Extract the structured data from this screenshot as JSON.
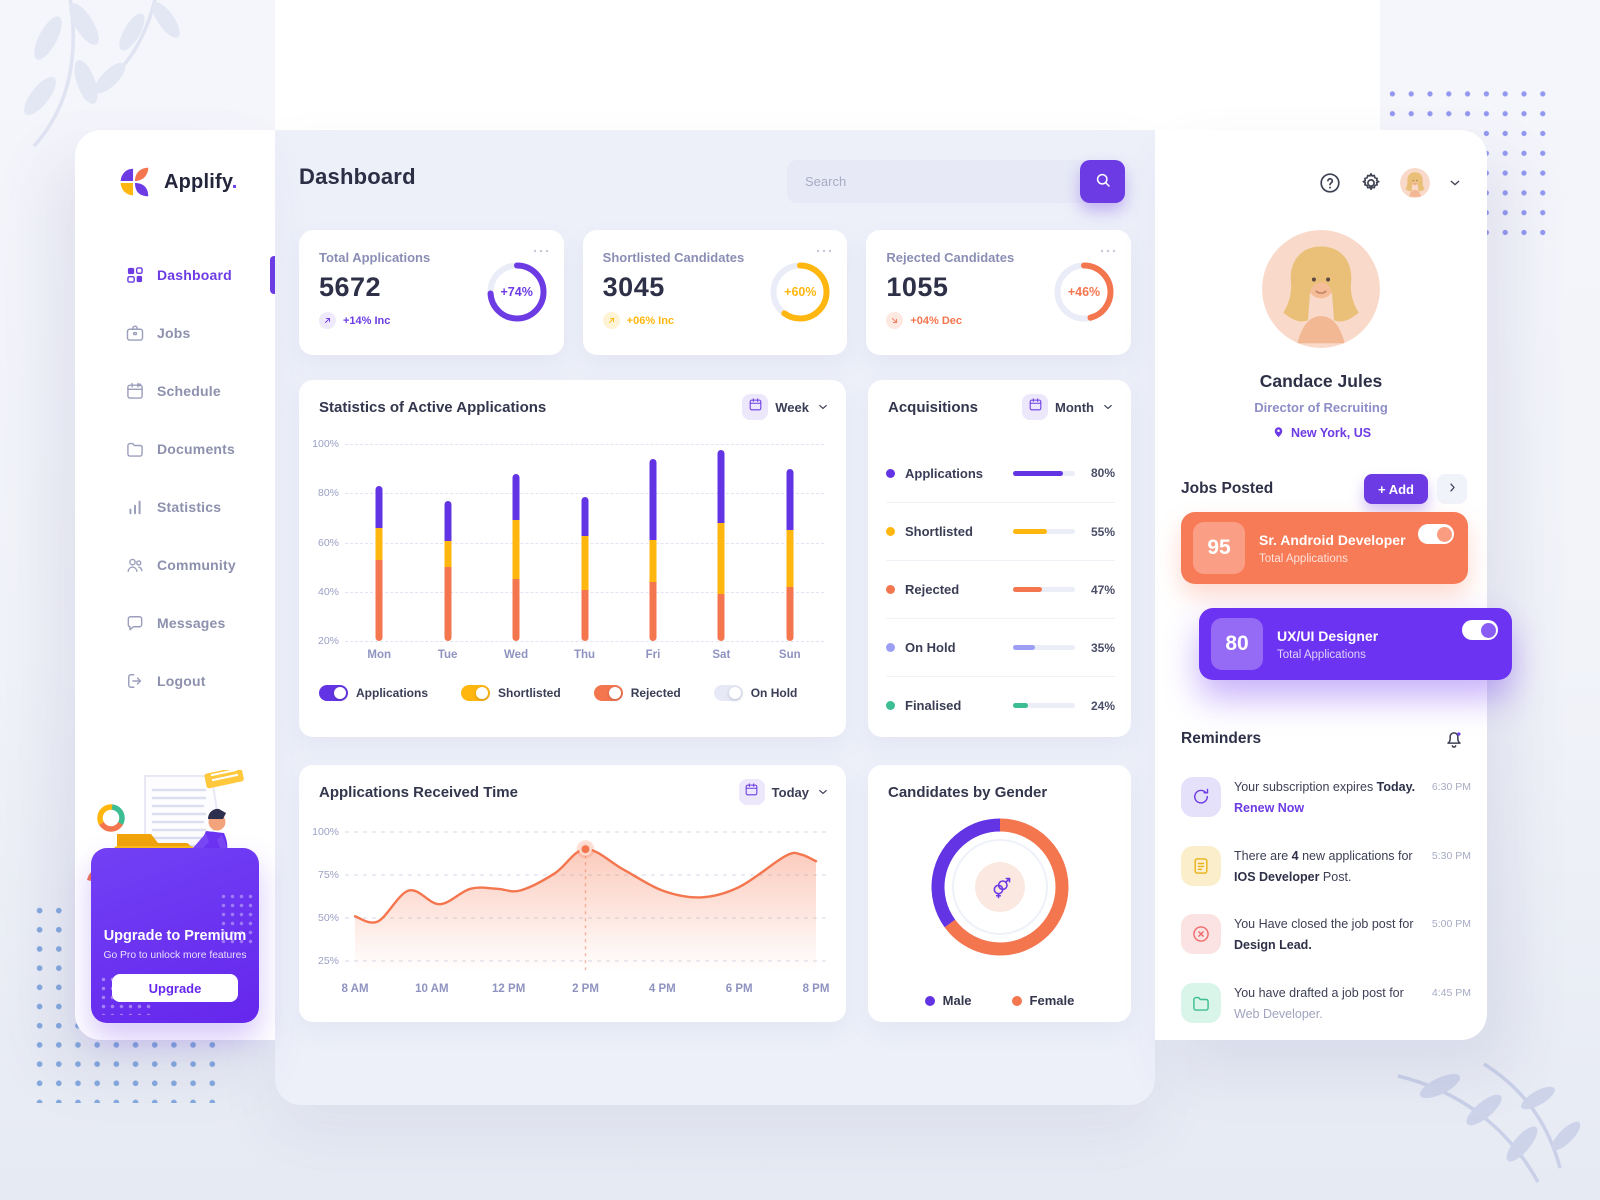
{
  "app": {
    "name": "Applify",
    "logo_dot": ".",
    "page_title": "Dashboard"
  },
  "search": {
    "placeholder": "Search"
  },
  "sidebar": {
    "items": [
      {
        "label": "Dashboard",
        "icon": "grid",
        "active": true
      },
      {
        "label": "Jobs",
        "icon": "briefcase",
        "active": false
      },
      {
        "label": "Schedule",
        "icon": "calendar-dot",
        "active": false
      },
      {
        "label": "Documents",
        "icon": "folder",
        "active": false
      },
      {
        "label": "Statistics",
        "icon": "bars",
        "active": false
      },
      {
        "label": "Community",
        "icon": "users",
        "active": false
      },
      {
        "label": "Messages",
        "icon": "chat",
        "active": false
      },
      {
        "label": "Logout",
        "icon": "logout",
        "active": false
      }
    ],
    "upgrade": {
      "title": "Upgrade to Premium",
      "subtitle": "Go Pro to unlock more features",
      "button_label": "Upgrade"
    }
  },
  "stat_cards": [
    {
      "title": "Total Applications",
      "value": "5672",
      "ring_percent": 74,
      "ring_label": "+74%",
      "delta": "+14% Inc",
      "trend": "up",
      "color": "#6C3BE4",
      "delta_bg": "#EFE9FC"
    },
    {
      "title": "Shortlisted Candidates",
      "value": "3045",
      "ring_percent": 60,
      "ring_label": "+60%",
      "delta": "+06% Inc",
      "trend": "up",
      "color": "#FFB70F",
      "delta_bg": "#FFF3D6"
    },
    {
      "title": "Rejected Candidates",
      "value": "1055",
      "ring_percent": 46,
      "ring_label": "+46%",
      "delta": "+04% Dec",
      "trend": "down",
      "color": "#F4764F",
      "delta_bg": "#FDE8E2"
    }
  ],
  "chart_data": [
    {
      "id": "active-applications",
      "type": "bar",
      "title": "Statistics of Active Applications",
      "period_selector": "Week",
      "stacked": true,
      "baseline": 20,
      "categories": [
        "Mon",
        "Tue",
        "Wed",
        "Thu",
        "Fri",
        "Sat",
        "Sun"
      ],
      "y_ticks": [
        "100%",
        "80%",
        "60%",
        "40%",
        "20%"
      ],
      "ylim": [
        20,
        100
      ],
      "series": [
        {
          "name": "Rejected",
          "color": "#F4764F",
          "values": [
            33,
            30,
            25,
            20.5,
            24,
            19,
            22
          ]
        },
        {
          "name": "Shortlisted",
          "color": "#FFB70F",
          "values": [
            13,
            10.5,
            24,
            22,
            17,
            29,
            23
          ]
        },
        {
          "name": "Applications",
          "color": "#6334E3",
          "values": [
            17,
            16.5,
            19,
            16,
            33,
            29.5,
            25
          ]
        }
      ],
      "bar_tops_percent": [
        83,
        77,
        88,
        78.5,
        94,
        97.5,
        90
      ],
      "legend": [
        {
          "label": "Applications",
          "color": "#6334E3",
          "toggle_on": true
        },
        {
          "label": "Shortlisted",
          "color": "#FFB70F",
          "toggle_on": true
        },
        {
          "label": "Rejected",
          "color": "#F4764F",
          "toggle_on": true
        },
        {
          "label": "On Hold",
          "color": "#E7EAF6",
          "toggle_on": false
        }
      ]
    },
    {
      "id": "acquisitions",
      "type": "progress-list",
      "title": "Acquisitions",
      "period_selector": "Month",
      "items": [
        {
          "label": "Applications",
          "value": 80,
          "display": "80%",
          "color": "#6334E3"
        },
        {
          "label": "Shortlisted",
          "value": 55,
          "display": "55%",
          "color": "#FFB70F"
        },
        {
          "label": "Rejected",
          "value": 47,
          "display": "47%",
          "color": "#F4764F"
        },
        {
          "label": "On Hold",
          "value": 35,
          "display": "35%",
          "color": "#9D9FF5"
        },
        {
          "label": "Finalised",
          "value": 24,
          "display": "24%",
          "color": "#3DBD94"
        }
      ]
    },
    {
      "id": "received-time",
      "type": "area",
      "title": "Applications Received Time",
      "period_selector": "Today",
      "color": "#F4764F",
      "x_labels": [
        "8 AM",
        "10 AM",
        "12 PM",
        "2 PM",
        "4 PM",
        "6 PM",
        "8 PM"
      ],
      "y_ticks": [
        "100%",
        "75%",
        "50%",
        "25%"
      ],
      "xlim": [
        8,
        20
      ],
      "ylim": [
        25,
        100
      ],
      "points": [
        [
          8,
          51
        ],
        [
          8.6,
          48
        ],
        [
          9.4,
          66
        ],
        [
          10.2,
          58
        ],
        [
          11,
          67
        ],
        [
          11.7,
          67
        ],
        [
          12.3,
          66
        ],
        [
          13.2,
          76
        ],
        [
          14,
          90
        ],
        [
          15,
          78
        ],
        [
          16,
          66
        ],
        [
          17,
          62
        ],
        [
          18,
          68
        ],
        [
          19.2,
          86
        ],
        [
          19.6,
          87
        ],
        [
          20,
          83
        ]
      ],
      "highlight_point": [
        14,
        90
      ]
    },
    {
      "id": "candidates-gender",
      "type": "donut",
      "title": "Candidates by Gender",
      "slices": [
        {
          "label": "Male",
          "value": 35,
          "color": "#6334E3"
        },
        {
          "label": "Female",
          "value": 65,
          "color": "#F4764F"
        }
      ]
    }
  ],
  "profile": {
    "name": "Candace Jules",
    "role": "Director of Recruiting",
    "location": "New York, US"
  },
  "jobs_posted": {
    "title": "Jobs Posted",
    "add_button": "+ Add",
    "cards": [
      {
        "count": "95",
        "title": "Sr. Android Developer",
        "subtitle": "Total Applications",
        "color": "#F87B57",
        "knob": "#FA9C80",
        "toggle_on": true
      },
      {
        "count": "80",
        "title": "UX/UI Designer",
        "subtitle": "Total Applications",
        "color": "#6D33F2",
        "knob": "#8A5CF6",
        "toggle_on": true
      }
    ]
  },
  "reminders": {
    "title": "Reminders",
    "items": [
      {
        "icon": "refresh",
        "icon_color": "#6C3BE4",
        "icon_bg": "#E6E1FB",
        "time": "6:30 PM",
        "lines": [
          [
            {
              "t": "Your subscription expires "
            },
            {
              "t": "Today.",
              "b": true
            }
          ],
          [
            {
              "t": "Renew Now",
              "link": true
            }
          ]
        ]
      },
      {
        "icon": "file",
        "icon_color": "#E9B21A",
        "icon_bg": "#FBEFCB",
        "time": "5:30 PM",
        "lines": [
          [
            {
              "t": "There are "
            },
            {
              "t": "4",
              "b": true
            },
            {
              "t": " new applications for"
            }
          ],
          [
            {
              "t": "IOS Developer",
              "b": true
            },
            {
              "t": " Post."
            }
          ]
        ]
      },
      {
        "icon": "x-circle",
        "icon_color": "#EF6A6A",
        "icon_bg": "#FCE3E3",
        "time": "5:00 PM",
        "lines": [
          [
            {
              "t": "You Have closed the job post for"
            }
          ],
          [
            {
              "t": "Design Lead.",
              "b": true
            }
          ]
        ]
      },
      {
        "icon": "folder",
        "icon_color": "#3DBD94",
        "icon_bg": "#D9F4E9",
        "time": "4:45 PM",
        "lines": [
          [
            {
              "t": "You have drafted a job post for"
            }
          ],
          [
            {
              "t": "Web Developer.",
              "muted": true
            }
          ]
        ]
      }
    ]
  }
}
